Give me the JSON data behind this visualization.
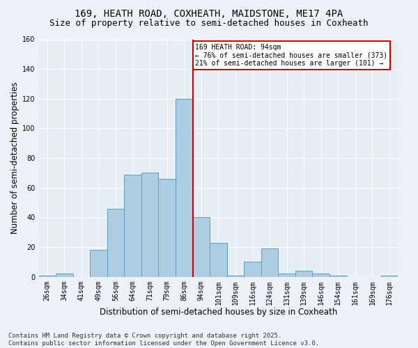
{
  "title_line1": "169, HEATH ROAD, COXHEATH, MAIDSTONE, ME17 4PA",
  "title_line2": "Size of property relative to semi-detached houses in Coxheath",
  "xlabel": "Distribution of semi-detached houses by size in Coxheath",
  "ylabel": "Number of semi-detached properties",
  "bin_labels": [
    "26sqm",
    "34sqm",
    "41sqm",
    "49sqm",
    "56sqm",
    "64sqm",
    "71sqm",
    "79sqm",
    "86sqm",
    "94sqm",
    "101sqm",
    "109sqm",
    "116sqm",
    "124sqm",
    "131sqm",
    "139sqm",
    "146sqm",
    "154sqm",
    "161sqm",
    "169sqm",
    "176sqm"
  ],
  "bar_values": [
    1,
    2,
    0,
    18,
    46,
    69,
    70,
    66,
    120,
    40,
    23,
    1,
    10,
    19,
    2,
    4,
    2,
    1,
    0,
    0,
    1
  ],
  "bar_color": "#aecde1",
  "bar_edge_color": "#5a9ec8",
  "highlight_line_index": 8,
  "highlight_line_color": "#cc0000",
  "ylim": [
    0,
    160
  ],
  "yticks": [
    0,
    20,
    40,
    60,
    80,
    100,
    120,
    140,
    160
  ],
  "annotation_title": "169 HEATH ROAD: 94sqm",
  "annotation_line2": "← 76% of semi-detached houses are smaller (373)",
  "annotation_line3": "21% of semi-detached houses are larger (101) →",
  "annotation_box_color": "#cc0000",
  "footer_line1": "Contains HM Land Registry data © Crown copyright and database right 2025.",
  "footer_line2": "Contains public sector information licensed under the Open Government Licence v3.0.",
  "bg_color": "#eef2f8",
  "plot_bg_color": "#e8eef6",
  "grid_color": "#ffffff",
  "title_fontsize": 10,
  "subtitle_fontsize": 9,
  "axis_label_fontsize": 8.5,
  "tick_fontsize": 7,
  "annotation_fontsize": 7,
  "footer_fontsize": 6.5
}
